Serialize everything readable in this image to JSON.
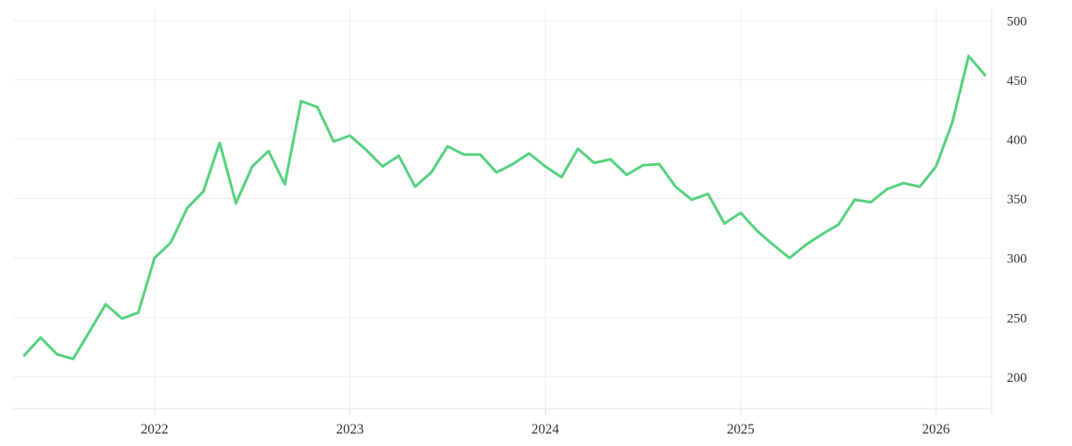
{
  "chart_data": {
    "type": "line",
    "title": "",
    "xlabel": "",
    "ylabel": "",
    "x_tick_labels": [
      "2022",
      "2023",
      "2024",
      "2025",
      "2026"
    ],
    "y_ticks": [
      200,
      250,
      300,
      350,
      400,
      450,
      500
    ],
    "ylim": [
      173,
      510
    ],
    "xlim_years": [
      2021.28,
      2026.28
    ],
    "grid": true,
    "y_axis_side": "right",
    "legend": "none",
    "series": [
      {
        "name": "price",
        "color": "#57d17f",
        "months": [
          "2021-05",
          "2021-06",
          "2021-07",
          "2021-08",
          "2021-09",
          "2021-10",
          "2021-11",
          "2021-12",
          "2022-01",
          "2022-02",
          "2022-03",
          "2022-04",
          "2022-05",
          "2022-06",
          "2022-07",
          "2022-08",
          "2022-09",
          "2022-10",
          "2022-11",
          "2022-12",
          "2023-01",
          "2023-02",
          "2023-03",
          "2023-04",
          "2023-05",
          "2023-06",
          "2023-07",
          "2023-08",
          "2023-09",
          "2023-10",
          "2023-11",
          "2023-12",
          "2024-01",
          "2024-02",
          "2024-03",
          "2024-04",
          "2024-05",
          "2024-06",
          "2024-07",
          "2024-08",
          "2024-09",
          "2024-10",
          "2024-11",
          "2024-12",
          "2025-01",
          "2025-02",
          "2025-03",
          "2025-04",
          "2025-05",
          "2025-06",
          "2025-07",
          "2025-08",
          "2025-09",
          "2025-10",
          "2025-11",
          "2025-12",
          "2026-01",
          "2026-02",
          "2026-03",
          "2026-04"
        ],
        "values": [
          218,
          233,
          219,
          215,
          238,
          261,
          249,
          254,
          300,
          313,
          342,
          356,
          397,
          346,
          377,
          390,
          362,
          432,
          427,
          398,
          403,
          391,
          377,
          386,
          360,
          372,
          394,
          387,
          387,
          372,
          379,
          388,
          377,
          368,
          392,
          380,
          383,
          370,
          378,
          379,
          360,
          349,
          354,
          329,
          338,
          323,
          311,
          300,
          311,
          320,
          328,
          349,
          347,
          358,
          363,
          360,
          377,
          414,
          470,
          454
        ]
      }
    ]
  },
  "colors": {
    "line": "#57d17f",
    "grid": "#ededed",
    "axis": "#e0e0e0",
    "tick_text": "#333333",
    "background": "#ffffff"
  }
}
